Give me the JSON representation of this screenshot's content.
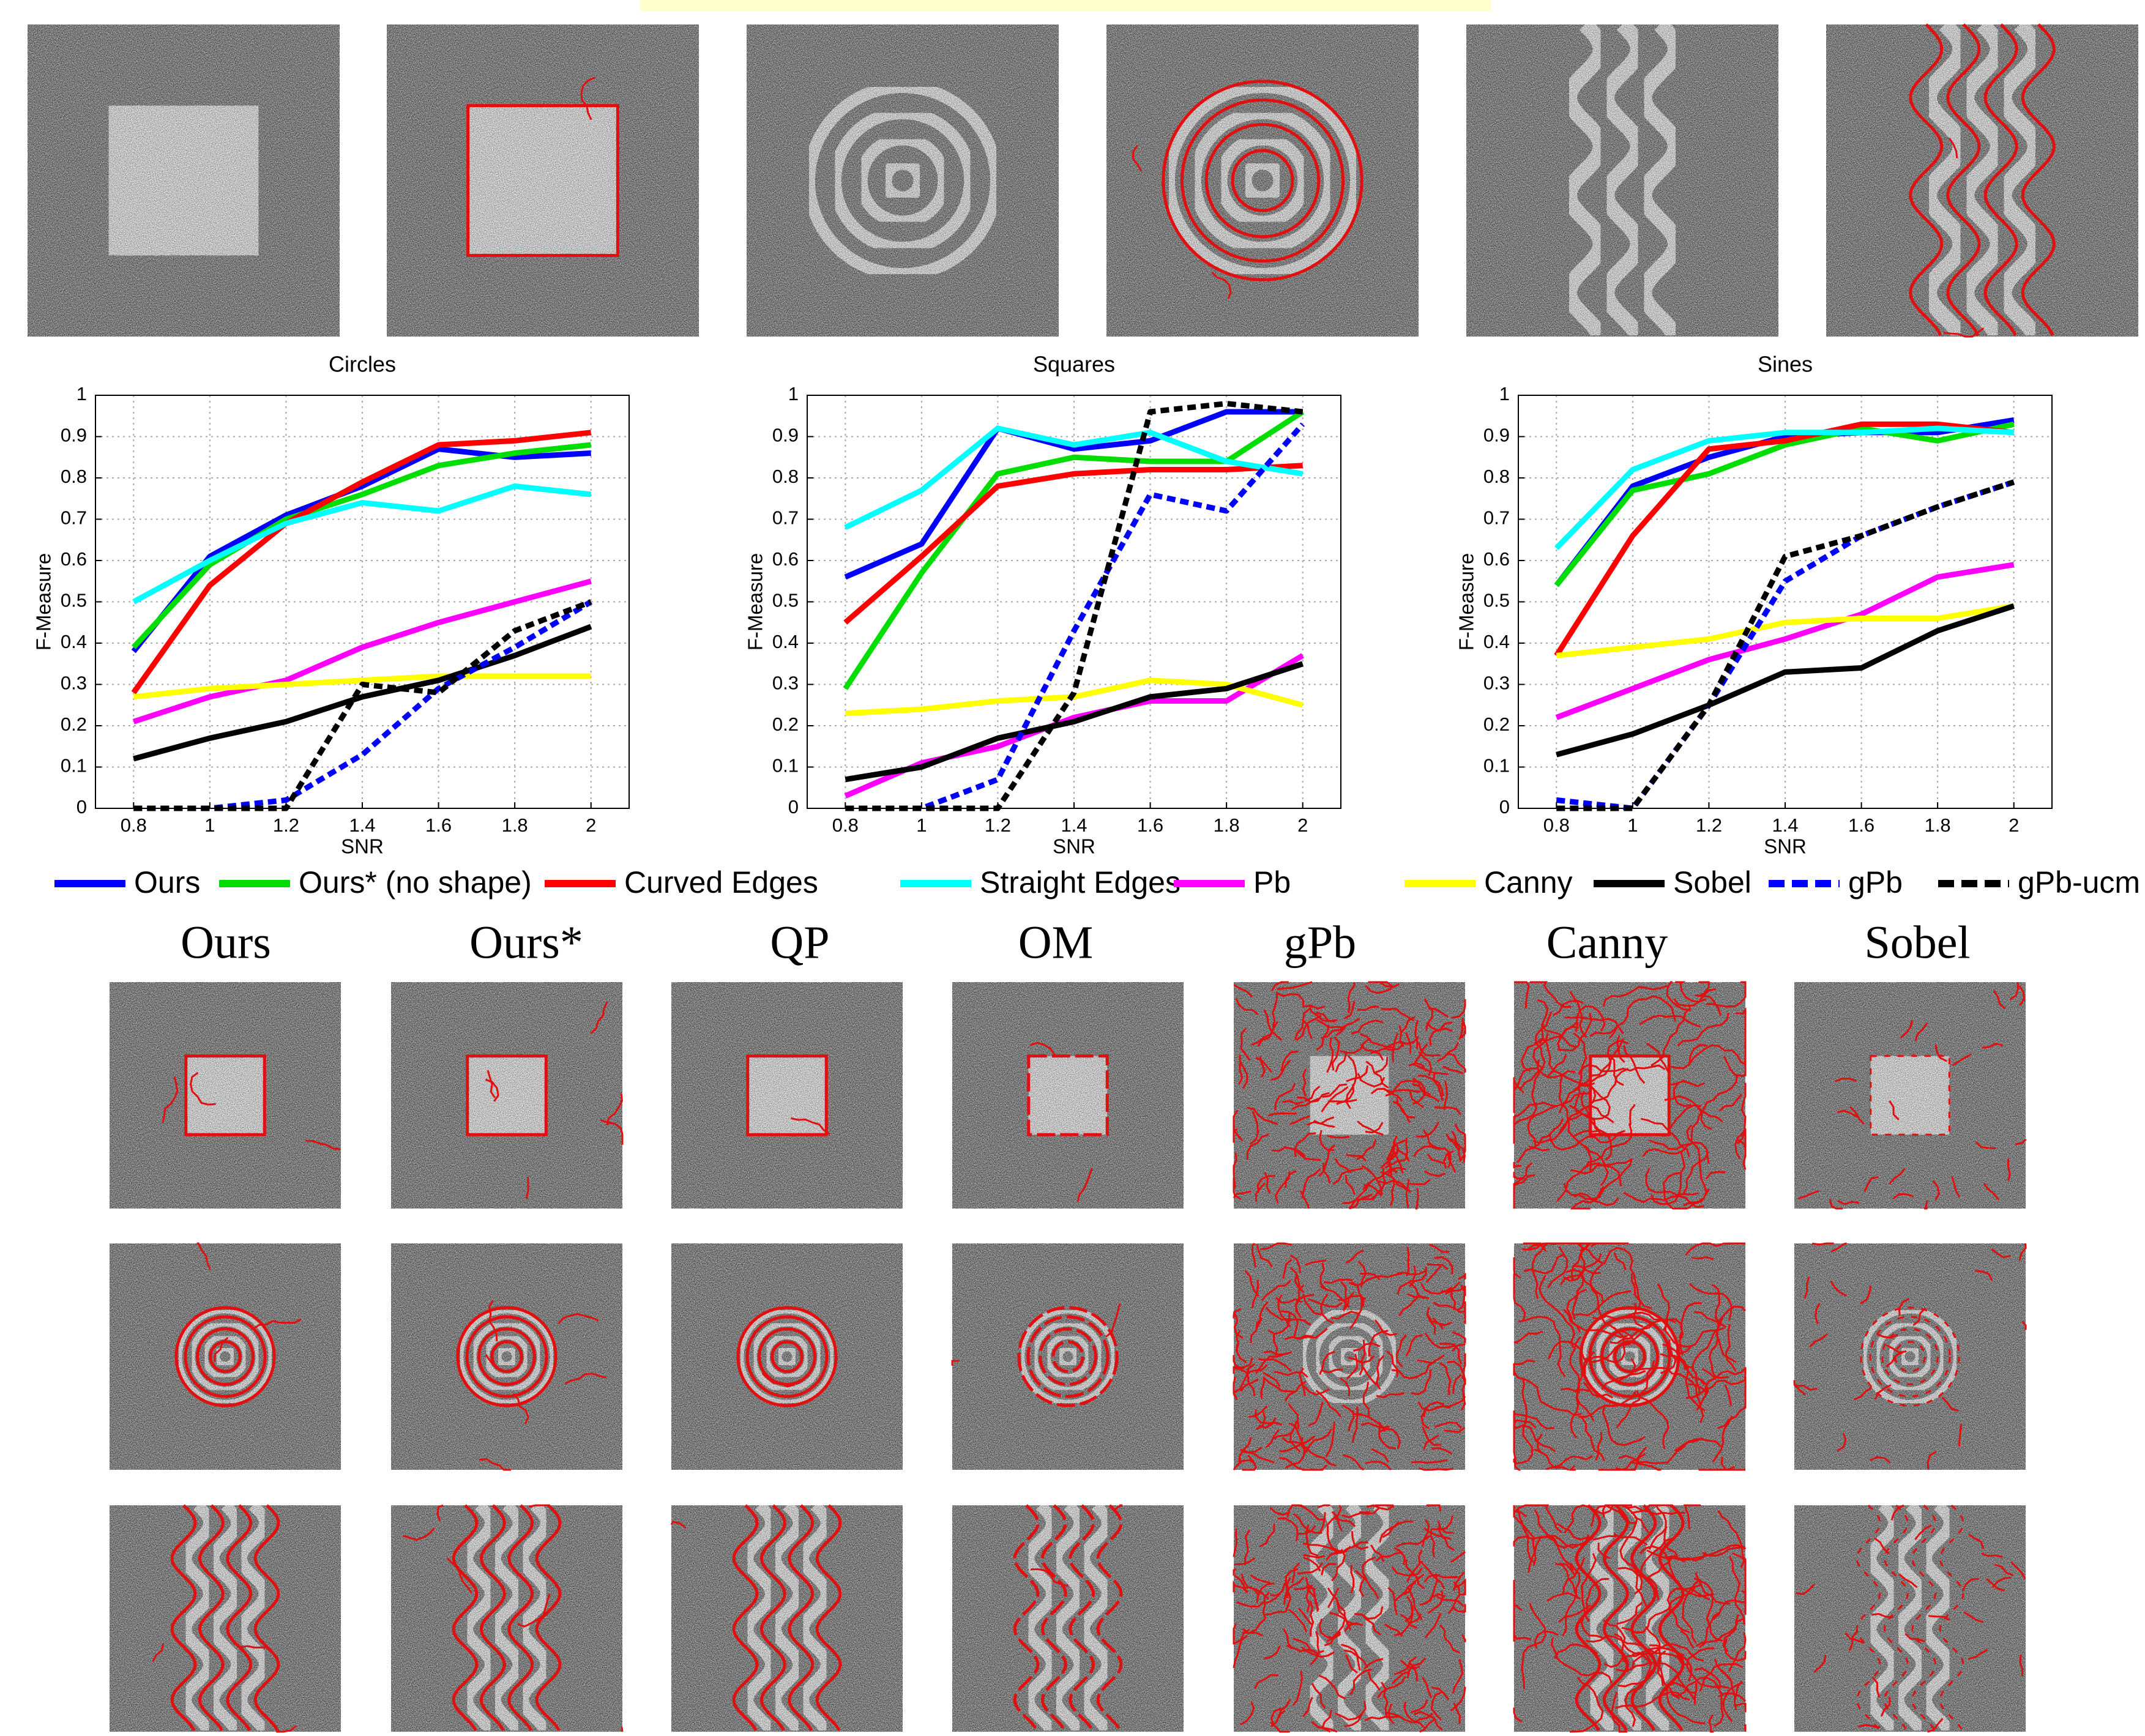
{
  "legend": [
    {
      "name": "Ours",
      "color": "#0000ff",
      "dashed": false
    },
    {
      "name": "Ours* (no shape)",
      "color": "#00dd00",
      "dashed": false
    },
    {
      "name": "Curved Edges",
      "color": "#ff0000",
      "dashed": false
    },
    {
      "name": "Straight Edges",
      "color": "#00ffff",
      "dashed": false
    },
    {
      "name": "Pb",
      "color": "#ff00ff",
      "dashed": false
    },
    {
      "name": "Canny",
      "color": "#ffff00",
      "dashed": false
    },
    {
      "name": "Sobel",
      "color": "#000000",
      "dashed": false
    },
    {
      "name": "gPb",
      "color": "#0000ff",
      "dashed": true
    },
    {
      "name": "gPb-ucm",
      "color": "#000000",
      "dashed": true
    }
  ],
  "chart_data": [
    {
      "type": "line",
      "title": "Circles",
      "x_label": "SNR",
      "y_label": "F-Measure",
      "x": [
        0.8,
        1,
        1.2,
        1.4,
        1.6,
        1.8,
        2
      ],
      "xlim": [
        0.7,
        2.1
      ],
      "ylim": [
        0,
        1
      ],
      "xticks": [
        0.8,
        1,
        1.2,
        1.4,
        1.6,
        1.8,
        2
      ],
      "yticks": [
        0,
        0.1,
        0.2,
        0.3,
        0.4,
        0.5,
        0.6,
        0.7,
        0.8,
        0.9,
        1
      ],
      "grid": true,
      "series": [
        {
          "values": [
            0.38,
            0.61,
            0.71,
            0.78,
            0.87,
            0.85,
            0.86
          ]
        },
        {
          "values": [
            0.39,
            0.59,
            0.7,
            0.76,
            0.83,
            0.86,
            0.88
          ]
        },
        {
          "values": [
            0.28,
            0.54,
            0.69,
            0.79,
            0.88,
            0.89,
            0.91
          ]
        },
        {
          "values": [
            0.5,
            0.6,
            0.69,
            0.74,
            0.72,
            0.78,
            0.76
          ]
        },
        {
          "values": [
            0.21,
            0.27,
            0.31,
            0.39,
            0.45,
            0.5,
            0.55
          ]
        },
        {
          "values": [
            0.27,
            0.29,
            0.3,
            0.31,
            0.32,
            0.32,
            0.32
          ]
        },
        {
          "values": [
            0.12,
            0.17,
            0.21,
            0.27,
            0.31,
            0.37,
            0.44
          ]
        },
        {
          "values": [
            0,
            0,
            0.02,
            0.13,
            0.29,
            0.39,
            0.5
          ]
        },
        {
          "values": [
            0,
            0,
            0,
            0.3,
            0.28,
            0.43,
            0.5
          ]
        }
      ]
    },
    {
      "type": "line",
      "title": "Squares",
      "x_label": "SNR",
      "y_label": "F-Measure",
      "x": [
        0.8,
        1,
        1.2,
        1.4,
        1.6,
        1.8,
        2
      ],
      "xlim": [
        0.7,
        2.1
      ],
      "ylim": [
        0,
        1
      ],
      "xticks": [
        0.8,
        1,
        1.2,
        1.4,
        1.6,
        1.8,
        2
      ],
      "yticks": [
        0,
        0.1,
        0.2,
        0.3,
        0.4,
        0.5,
        0.6,
        0.7,
        0.8,
        0.9,
        1
      ],
      "grid": true,
      "series": [
        {
          "values": [
            0.56,
            0.64,
            0.92,
            0.87,
            0.89,
            0.96,
            0.96
          ]
        },
        {
          "values": [
            0.29,
            0.57,
            0.81,
            0.85,
            0.84,
            0.84,
            0.96
          ]
        },
        {
          "values": [
            0.45,
            0.61,
            0.78,
            0.81,
            0.82,
            0.82,
            0.83
          ]
        },
        {
          "values": [
            0.68,
            0.77,
            0.92,
            0.88,
            0.91,
            0.84,
            0.81
          ]
        },
        {
          "values": [
            0.03,
            0.11,
            0.15,
            0.22,
            0.26,
            0.26,
            0.37
          ]
        },
        {
          "values": [
            0.23,
            0.24,
            0.26,
            0.27,
            0.31,
            0.3,
            0.25
          ]
        },
        {
          "values": [
            0.07,
            0.1,
            0.17,
            0.21,
            0.27,
            0.29,
            0.35
          ]
        },
        {
          "values": [
            0,
            0,
            0.07,
            0.43,
            0.76,
            0.72,
            0.93
          ]
        },
        {
          "values": [
            0,
            0,
            0,
            0.28,
            0.96,
            0.98,
            0.96
          ]
        }
      ]
    },
    {
      "type": "line",
      "title": "Sines",
      "x_label": "SNR",
      "y_label": "F-Measure",
      "x": [
        0.8,
        1,
        1.2,
        1.4,
        1.6,
        1.8,
        2
      ],
      "xlim": [
        0.7,
        2.1
      ],
      "ylim": [
        0,
        1
      ],
      "xticks": [
        0.8,
        1,
        1.2,
        1.4,
        1.6,
        1.8,
        2
      ],
      "yticks": [
        0,
        0.1,
        0.2,
        0.3,
        0.4,
        0.5,
        0.6,
        0.7,
        0.8,
        0.9,
        1
      ],
      "grid": true,
      "series": [
        {
          "values": [
            0.54,
            0.78,
            0.85,
            0.9,
            0.91,
            0.91,
            0.94
          ]
        },
        {
          "values": [
            0.54,
            0.77,
            0.81,
            0.88,
            0.92,
            0.89,
            0.93
          ]
        },
        {
          "values": [
            0.37,
            0.66,
            0.87,
            0.89,
            0.93,
            0.93,
            0.91
          ]
        },
        {
          "values": [
            0.63,
            0.82,
            0.89,
            0.91,
            0.91,
            0.92,
            0.91
          ]
        },
        {
          "values": [
            0.22,
            0.29,
            0.36,
            0.41,
            0.47,
            0.56,
            0.59
          ]
        },
        {
          "values": [
            0.37,
            0.39,
            0.41,
            0.45,
            0.46,
            0.46,
            0.49
          ]
        },
        {
          "values": [
            0.13,
            0.18,
            0.25,
            0.33,
            0.34,
            0.43,
            0.49
          ]
        },
        {
          "values": [
            0.02,
            0,
            0.25,
            0.55,
            0.66,
            0.73,
            0.79
          ]
        },
        {
          "values": [
            0,
            0,
            0.25,
            0.61,
            0.66,
            0.73,
            0.79
          ]
        }
      ]
    }
  ],
  "methods": [
    "Ours",
    "Ours*",
    "QP",
    "OM",
    "gPb",
    "Canny",
    "Sobel"
  ]
}
